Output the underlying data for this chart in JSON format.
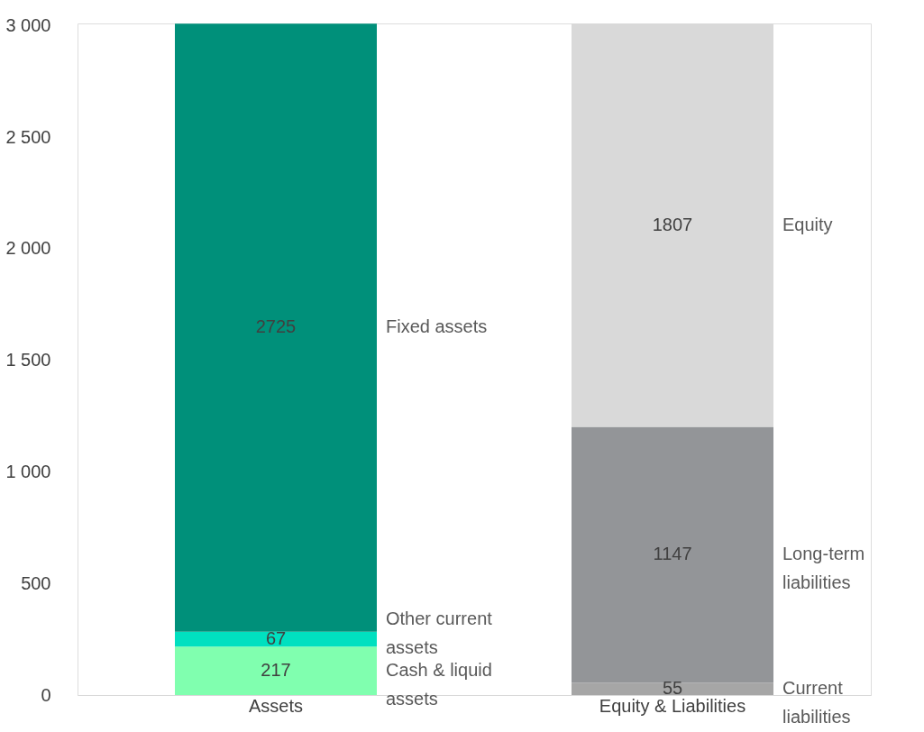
{
  "chart_data": {
    "type": "bar",
    "stacked": true,
    "categories": [
      "Assets",
      "Equity & Liabilities"
    ],
    "series": [
      {
        "name": "Cash & liquid assets",
        "color": "#80ffaf",
        "values": [
          217,
          null
        ]
      },
      {
        "name": "Other current assets",
        "color": "#00e0c0",
        "values": [
          67,
          null
        ]
      },
      {
        "name": "Fixed assets",
        "color": "#00907a",
        "values": [
          2725,
          null
        ]
      },
      {
        "name": "Current liabilities",
        "color": "#a6a6a6",
        "values": [
          null,
          55
        ]
      },
      {
        "name": "Long-term liabilities",
        "color": "#939598",
        "values": [
          null,
          1147
        ]
      },
      {
        "name": "Equity",
        "color": "#d9d9d9",
        "values": [
          null,
          1807
        ]
      }
    ],
    "ylim": [
      0,
      3010
    ],
    "yticks": [
      0,
      500,
      {
        "value": 1000,
        "label": "1 000"
      },
      {
        "value": 1500,
        "label": "1 500"
      },
      {
        "value": 2000,
        "label": "2 000"
      },
      {
        "value": 2500,
        "label": "2 500"
      },
      {
        "value": 3000,
        "label": "3 000"
      }
    ],
    "data_labels": true,
    "grid": false,
    "legend": false
  }
}
